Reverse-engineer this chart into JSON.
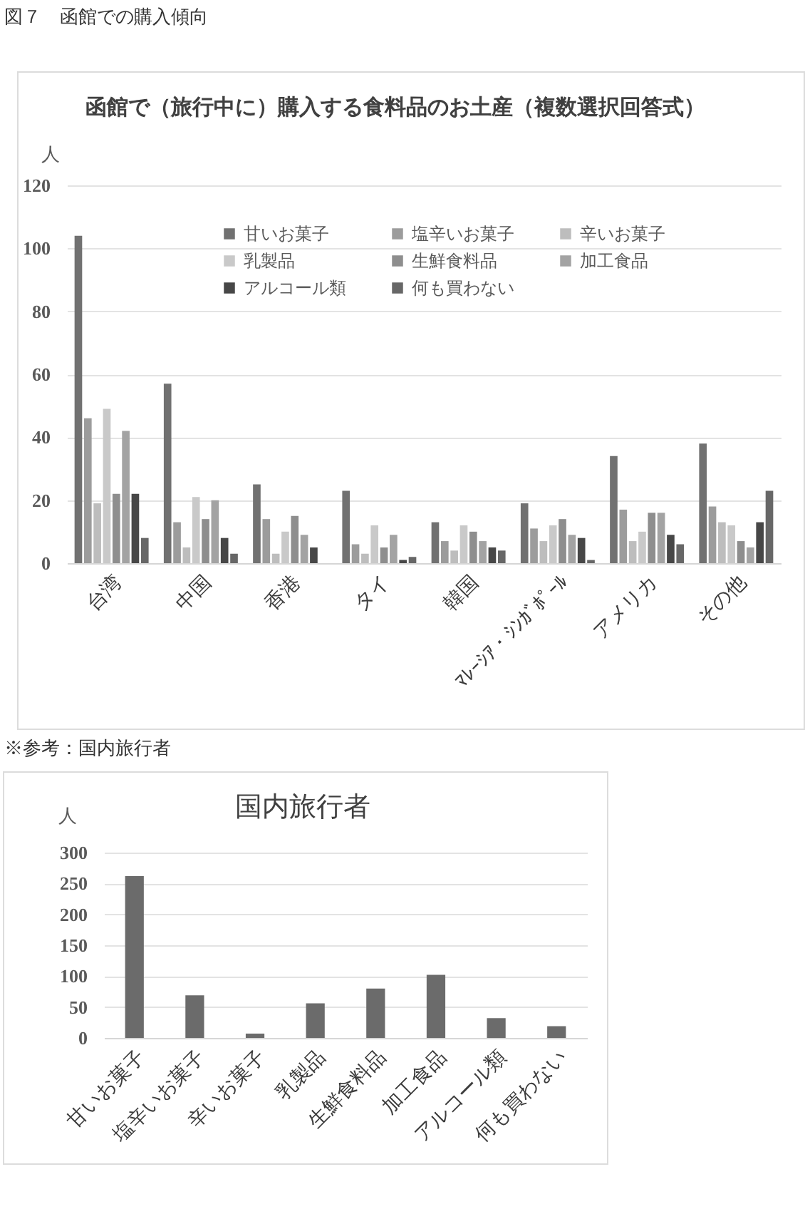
{
  "chart_data": [
    {
      "type": "bar",
      "title": "函館で（旅行中に）購入する食料品のお土産（複数選択回答式）",
      "ylabel": "人",
      "annotations": [
        "図７　函館での購入傾向"
      ],
      "categories": [
        "台湾",
        "中国",
        "香港",
        "タイ",
        "韓国",
        "ﾏﾚｰｼｱ・ｼﾝｶﾞﾎﾟｰﾙ",
        "アメリカ",
        "その他"
      ],
      "series": [
        {
          "name": "甘いお菓子",
          "color": "#717171",
          "values": [
            104,
            57,
            25,
            23,
            13,
            19,
            34,
            38
          ]
        },
        {
          "name": "塩辛いお菓子",
          "color": "#9c9c9c",
          "values": [
            46,
            13,
            14,
            6,
            7,
            11,
            17,
            18
          ]
        },
        {
          "name": "辛いお菓子",
          "color": "#bdbdbd",
          "values": [
            19,
            5,
            3,
            3,
            4,
            7,
            7,
            13
          ]
        },
        {
          "name": "乳製品",
          "color": "#c9c9c9",
          "values": [
            49,
            21,
            10,
            12,
            12,
            12,
            10,
            12
          ]
        },
        {
          "name": "生鮮食料品",
          "color": "#8e8e8e",
          "values": [
            22,
            14,
            15,
            5,
            10,
            14,
            16,
            7
          ]
        },
        {
          "name": "加工食品",
          "color": "#a3a3a3",
          "values": [
            42,
            20,
            9,
            9,
            7,
            9,
            16,
            5
          ]
        },
        {
          "name": "アルコール類",
          "color": "#474747",
          "values": [
            22,
            8,
            5,
            1,
            5,
            8,
            9,
            13
          ]
        },
        {
          "name": "何も買わない",
          "color": "#676767",
          "values": [
            8,
            3,
            0,
            2,
            4,
            1,
            6,
            23
          ]
        }
      ],
      "ylim": [
        0,
        120
      ],
      "yticks": [
        0,
        20,
        40,
        60,
        80,
        100,
        120
      ],
      "grid": "y",
      "legend": "top"
    },
    {
      "type": "bar",
      "title": "国内旅行者",
      "ylabel": "人",
      "annotations": [
        "※参考：国内旅行者"
      ],
      "categories": [
        "甘いお菓子",
        "塩辛いお菓子",
        "辛いお菓子",
        "乳製品",
        "生鮮食料品",
        "加工食品",
        "アルコール類",
        "何も買わない"
      ],
      "series": [
        {
          "color": "#6b6b6b",
          "values": [
            262,
            69,
            7,
            56,
            80,
            102,
            32,
            19
          ]
        }
      ],
      "ylim": [
        0,
        300
      ],
      "yticks": [
        0,
        50,
        100,
        150,
        200,
        250,
        300
      ],
      "grid": "y"
    }
  ]
}
